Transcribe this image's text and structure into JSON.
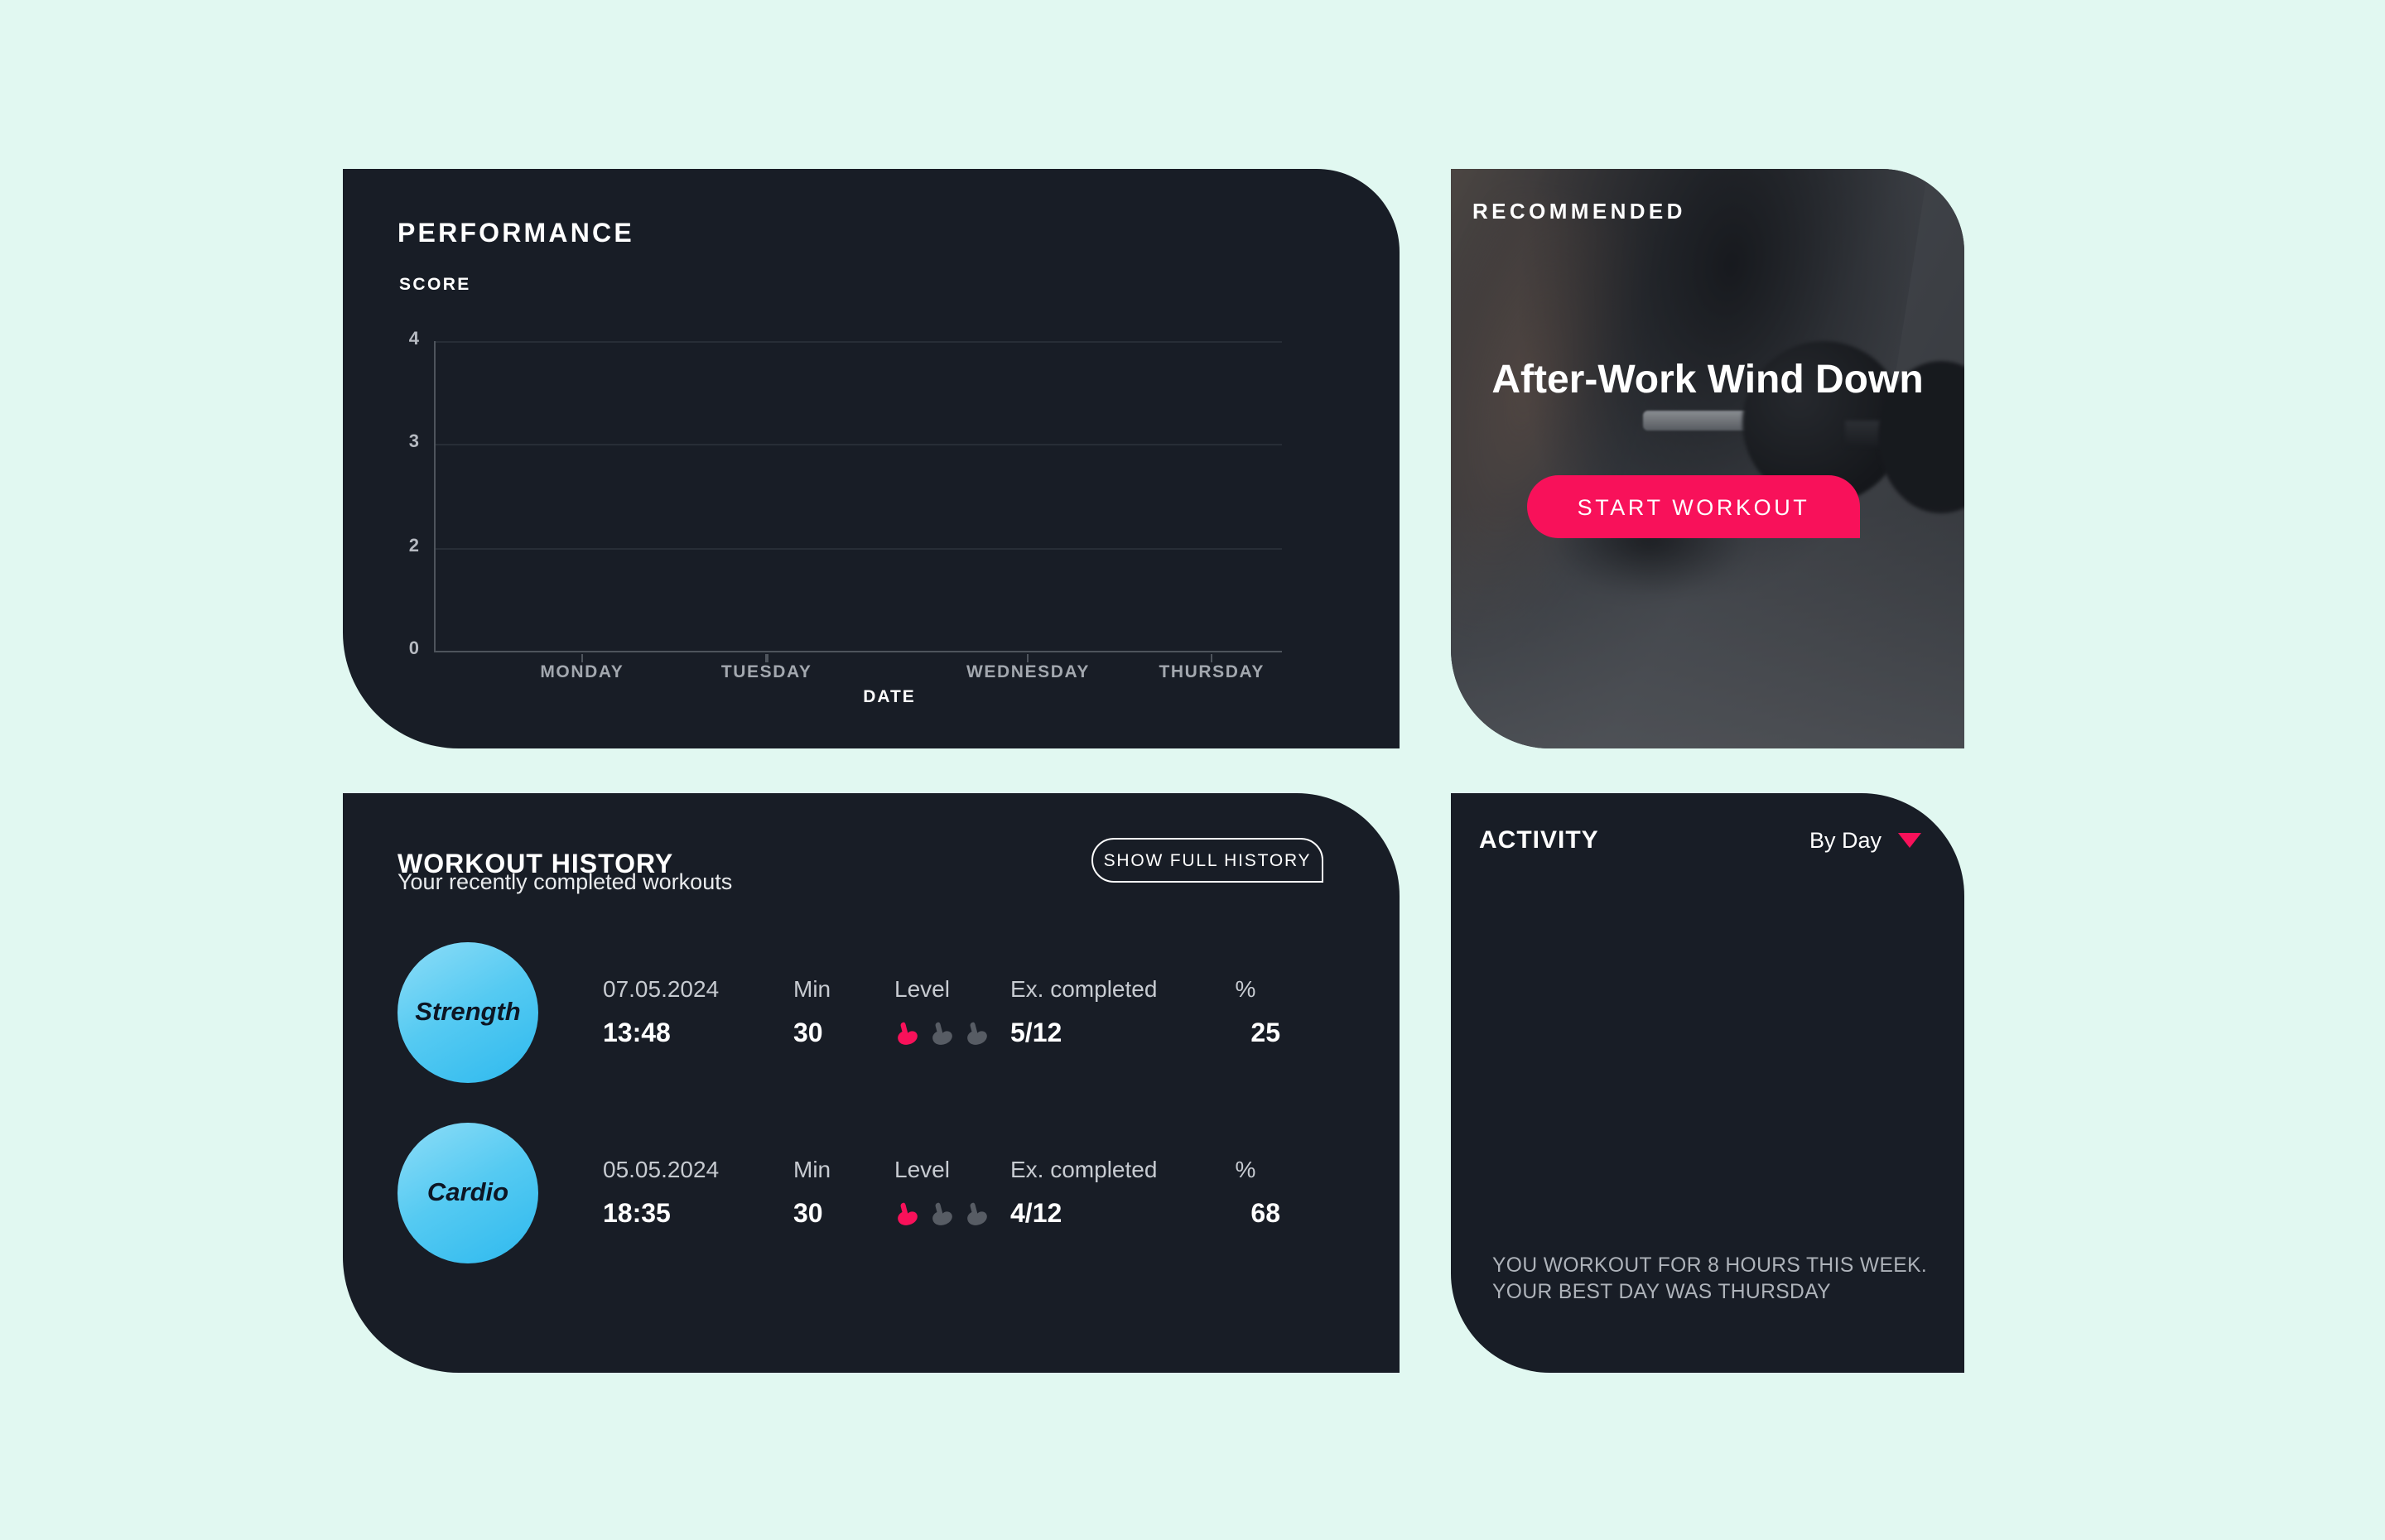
{
  "theme": {
    "page_bg": "#E1F8F1",
    "panel_bg": "#181D26",
    "accent_pink": "#F8115A",
    "badge_blue_light": "#8EDDF7",
    "badge_blue_dark": "#2EB9EE",
    "muted_text": "#C7CBD1",
    "axis_gray": "#4E545C"
  },
  "performance": {
    "title": "PERFORMANCE",
    "chart_data": {
      "type": "line",
      "title": "PERFORMANCE",
      "xlabel": "DATE",
      "ylabel": "SCORE",
      "categories": [
        "MONDAY",
        "TUESDAY",
        "WEDNESDAY",
        "THURSDAY"
      ],
      "series": [],
      "ylim": [
        0,
        4
      ],
      "yticks": [
        4,
        3,
        2,
        0
      ],
      "grid": "horizontal",
      "legend": "none",
      "layout": {
        "ytick_pct": [
          0,
          33.3,
          66.6,
          100
        ],
        "x_pct": [
          17.6,
          39.4,
          70.3,
          92.0
        ]
      }
    }
  },
  "recommended": {
    "label": "RECOMMENDED",
    "photo": "person-tying-shoe-with-dumbbell-photo",
    "title": "After-Work Wind Down",
    "button_label": "START WORKOUT"
  },
  "workout_history": {
    "title": "WORKOUT HISTORY",
    "subtitle": "Your recently completed workouts",
    "button_label": "SHOW FULL HISTORY",
    "columns": {
      "min": "Min",
      "level": "Level",
      "ex": "Ex. completed",
      "pct": "%"
    },
    "level_icon": "flexed-arm-icon",
    "rows": [
      {
        "type": "Strength",
        "date": "07.05.2024",
        "time": "13:48",
        "min": "30",
        "level": 1,
        "level_max": 3,
        "ex": "5/12",
        "pct": "25"
      },
      {
        "type": "Cardio",
        "date": "05.05.2024",
        "time": "18:35",
        "min": "30",
        "level": 1,
        "level_max": 3,
        "ex": "4/12",
        "pct": "68"
      }
    ]
  },
  "activity": {
    "title": "ACTIVITY",
    "filter_label": "By Day",
    "dropdown_icon": "triangle-down-icon",
    "summary": [
      "YOU WORKOUT FOR 8 HOURS THIS WEEK.",
      "YOUR BEST DAY WAS THURSDAY"
    ]
  }
}
